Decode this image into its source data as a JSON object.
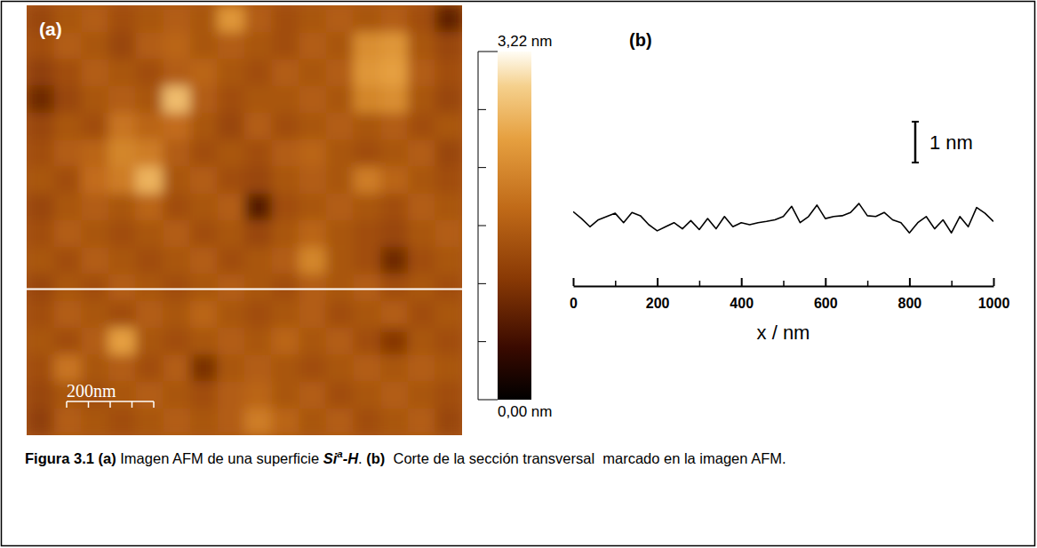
{
  "chart_data": [
    {
      "type": "heatmap",
      "panel": "(a)",
      "xlim": [
        0,
        1000
      ],
      "ylim": [
        0,
        1000
      ],
      "tick_labels": false,
      "cells": [
        [
          1.3,
          1.5,
          1.6,
          1.4,
          1.5,
          1.6,
          1.5,
          2.3,
          1.6,
          1.4,
          1.5,
          1.6,
          1.5,
          1.6,
          1.4,
          0.8
        ],
        [
          1.4,
          1.6,
          1.5,
          1.3,
          1.6,
          1.7,
          1.5,
          1.6,
          1.5,
          1.4,
          1.6,
          1.5,
          2.2,
          2.3,
          1.5,
          1.3
        ],
        [
          1.2,
          1.4,
          1.6,
          1.5,
          1.4,
          1.6,
          1.7,
          1.5,
          1.4,
          1.6,
          1.5,
          1.6,
          2.3,
          2.4,
          1.6,
          1.4
        ],
        [
          0.9,
          1.3,
          1.5,
          1.6,
          1.5,
          2.7,
          1.6,
          1.4,
          1.5,
          1.5,
          1.6,
          1.5,
          2.1,
          2.2,
          1.5,
          1.3
        ],
        [
          1.3,
          1.5,
          1.4,
          1.9,
          1.7,
          1.8,
          1.5,
          1.3,
          1.6,
          1.4,
          1.5,
          1.6,
          1.5,
          1.6,
          1.4,
          1.5
        ],
        [
          1.4,
          1.6,
          1.7,
          2.1,
          2.0,
          1.6,
          1.4,
          1.5,
          1.4,
          1.6,
          1.7,
          1.5,
          1.4,
          1.5,
          1.6,
          1.3
        ],
        [
          1.5,
          1.4,
          1.8,
          2.0,
          2.6,
          1.5,
          1.6,
          1.4,
          1.3,
          1.5,
          1.6,
          1.5,
          2.0,
          1.7,
          1.5,
          1.4
        ],
        [
          1.3,
          1.5,
          1.6,
          1.5,
          1.7,
          1.4,
          1.5,
          1.6,
          0.7,
          1.4,
          1.5,
          1.6,
          1.5,
          1.4,
          1.6,
          1.5
        ],
        [
          1.4,
          1.6,
          1.5,
          1.4,
          1.5,
          1.6,
          1.4,
          1.5,
          1.3,
          1.5,
          1.7,
          1.5,
          1.4,
          1.3,
          1.5,
          1.6
        ],
        [
          1.5,
          1.4,
          1.6,
          1.5,
          1.4,
          1.5,
          1.6,
          1.4,
          1.5,
          1.6,
          2.1,
          1.5,
          1.4,
          0.9,
          1.4,
          1.5
        ],
        [
          1.3,
          1.5,
          1.4,
          1.6,
          1.5,
          1.4,
          1.5,
          1.6,
          1.5,
          1.4,
          1.6,
          1.5,
          1.6,
          1.4,
          1.5,
          1.4
        ],
        [
          1.4,
          1.6,
          1.5,
          1.4,
          1.6,
          1.5,
          1.7,
          1.5,
          1.4,
          1.5,
          1.6,
          1.4,
          1.5,
          1.6,
          1.4,
          1.5
        ],
        [
          1.5,
          1.4,
          1.6,
          2.4,
          1.5,
          1.4,
          1.5,
          1.6,
          1.5,
          1.7,
          1.5,
          1.6,
          1.4,
          1.1,
          1.5,
          1.4
        ],
        [
          1.4,
          1.9,
          1.5,
          1.6,
          1.4,
          1.6,
          1.0,
          1.5,
          1.6,
          1.5,
          1.4,
          1.5,
          1.6,
          1.5,
          1.6,
          1.5
        ],
        [
          1.3,
          1.5,
          1.4,
          1.5,
          1.6,
          1.5,
          1.4,
          1.6,
          1.7,
          1.5,
          1.6,
          1.4,
          1.5,
          1.6,
          1.5,
          1.4
        ],
        [
          1.2,
          1.6,
          1.5,
          1.4,
          1.5,
          1.6,
          1.5,
          1.6,
          2.0,
          1.7,
          1.5,
          1.6,
          1.4,
          1.5,
          1.6,
          1.3
        ]
      ],
      "colorbar_range": [
        0,
        3.22
      ],
      "colorbar_ticks": [
        {
          "value": 3.22,
          "label": "3,22 nm"
        },
        {
          "value": 0,
          "label": "0,00 nm"
        }
      ],
      "colorbar_minor_ticks": [
        0.537,
        1.073,
        1.61,
        2.147,
        2.683
      ],
      "scale_bar": {
        "value": 200,
        "label": "200nm",
        "ticks": [
          0,
          50,
          100,
          150,
          200
        ]
      },
      "section_y": 660
    },
    {
      "type": "line",
      "panel": "(b)",
      "color": "#000000",
      "x": [
        0,
        20,
        40,
        60,
        80,
        100,
        120,
        140,
        160,
        180,
        200,
        220,
        240,
        260,
        280,
        300,
        320,
        340,
        360,
        380,
        400,
        420,
        440,
        460,
        480,
        500,
        520,
        540,
        560,
        580,
        600,
        620,
        640,
        660,
        680,
        700,
        720,
        740,
        760,
        780,
        800,
        820,
        840,
        860,
        880,
        900,
        920,
        940,
        960,
        980,
        1000
      ],
      "values": [
        1.82,
        1.65,
        1.45,
        1.62,
        1.7,
        1.78,
        1.55,
        1.8,
        1.72,
        1.5,
        1.35,
        1.45,
        1.55,
        1.4,
        1.6,
        1.38,
        1.65,
        1.4,
        1.7,
        1.45,
        1.55,
        1.5,
        1.55,
        1.58,
        1.62,
        1.7,
        1.95,
        1.55,
        1.7,
        1.98,
        1.65,
        1.7,
        1.72,
        1.8,
        2.02,
        1.72,
        1.7,
        1.8,
        1.62,
        1.55,
        1.3,
        1.55,
        1.7,
        1.4,
        1.62,
        1.3,
        1.7,
        1.45,
        1.92,
        1.78,
        1.58
      ],
      "xlim": [
        0,
        1000
      ],
      "xticks": [
        0,
        200,
        400,
        600,
        800,
        1000
      ],
      "xminor_ticks": [
        100,
        300,
        500,
        700,
        900
      ],
      "x_label": "x / nm",
      "tick_labels": "x",
      "scale_bar": {
        "value": 1,
        "label": "1 nm"
      }
    }
  ],
  "caption": [
    {
      "text": "Figura 3.1 (a)",
      "style": "bold"
    },
    {
      "text": " Imagen AFM de una superficie ",
      "style": "normal"
    },
    {
      "text": "Si",
      "style": "bold-italic"
    },
    {
      "text": "a",
      "style": "superscript"
    },
    {
      "text": "-H",
      "style": "bold-italic"
    },
    {
      "text": ". ",
      "style": "normal"
    },
    {
      "text": "(b)",
      "style": "bold"
    },
    {
      "text": "  Corte de la sección transversal  marcado en la imagen AFM.",
      "style": "normal"
    }
  ]
}
